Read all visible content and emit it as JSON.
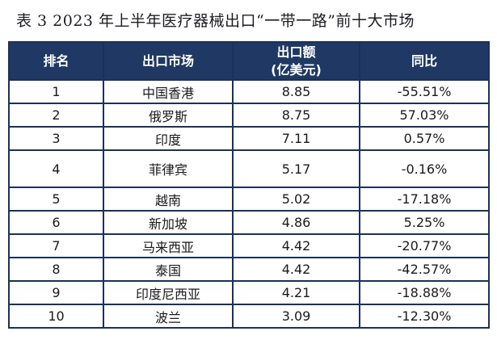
{
  "page": {
    "title": "表 3  2023 年上半年医疗器械出口“一带一路”前十大市场"
  },
  "table": {
    "columns": [
      {
        "id": "rank",
        "label": "排名"
      },
      {
        "id": "market",
        "label": "出口市场"
      },
      {
        "id": "value",
        "label": "出口额\n(亿美元)"
      },
      {
        "id": "yoy",
        "label": "同比"
      }
    ],
    "rows": [
      {
        "rank": "1",
        "market": "中国香港",
        "value": "8.85",
        "yoy": "-55.51%"
      },
      {
        "rank": "2",
        "market": "俄罗斯",
        "value": "8.75",
        "yoy": "57.03%"
      },
      {
        "rank": "3",
        "market": "印度",
        "value": "7.11",
        "yoy": "0.57%"
      },
      {
        "rank": "4",
        "market": "菲律宾",
        "value": "5.17",
        "yoy": "-0.16%"
      },
      {
        "rank": "5",
        "market": "越南",
        "value": "5.02",
        "yoy": "-17.18%"
      },
      {
        "rank": "6",
        "market": "新加坡",
        "value": "4.86",
        "yoy": "5.25%"
      },
      {
        "rank": "7",
        "market": "马来西亚",
        "value": "4.42",
        "yoy": "-20.77%"
      },
      {
        "rank": "8",
        "market": "泰国",
        "value": "4.42",
        "yoy": "-42.57%"
      },
      {
        "rank": "9",
        "market": "印度尼西亚",
        "value": "4.21",
        "yoy": "-18.88%"
      },
      {
        "rank": "10",
        "market": "波兰",
        "value": "3.09",
        "yoy": "-12.30%"
      }
    ]
  },
  "colors": {
    "header_bg": "#1f3864",
    "header_text": "#ffffff",
    "border": "#1b3158",
    "body_text": "#1a1a1a",
    "background": "#ffffff",
    "title_text": "#1c1c24"
  }
}
